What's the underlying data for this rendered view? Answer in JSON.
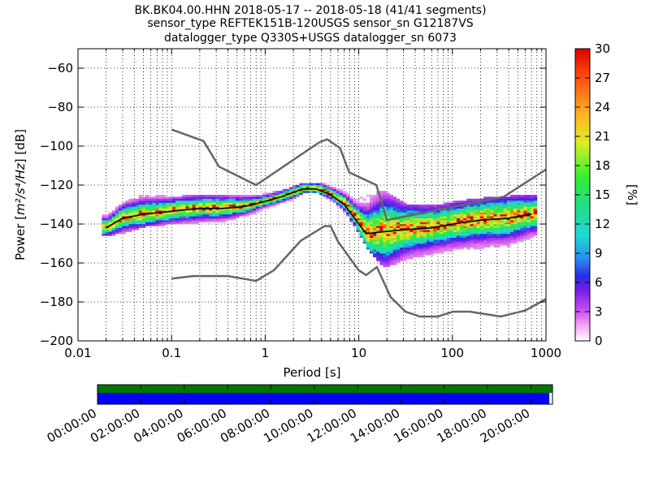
{
  "title_lines": [
    "BK.BK04.00.HHN   2018-05-17 -- 2018-05-18  (41/41 segments)",
    "sensor_type REFTEK151B-120USGS sensor_sn G12187VS",
    "datalogger_type Q330S+USGS datalogger_sn 6073"
  ],
  "chart_data": {
    "type": "heatmap",
    "xlabel": "Period [s]",
    "ylabel_prefix": "Power [",
    "ylabel_math": "m²/s⁴/Hz",
    "ylabel_suffix": "] [dB]",
    "x_scale": "log",
    "xlim": [
      0.01,
      1000
    ],
    "ylim": [
      -200,
      -50
    ],
    "x_ticks": [
      {
        "value": 0.01,
        "label": "0.01"
      },
      {
        "value": 0.1,
        "label": "0.1"
      },
      {
        "value": 1,
        "label": "1"
      },
      {
        "value": 10,
        "label": "10"
      },
      {
        "value": 100,
        "label": "100"
      },
      {
        "value": 1000,
        "label": "1000"
      }
    ],
    "y_ticks": [
      -60,
      -80,
      -100,
      -120,
      -140,
      -160,
      -180,
      -200
    ],
    "y_tick_labels": [
      "−60",
      "−80",
      "−100",
      "−120",
      "−140",
      "−160",
      "−180",
      "−200"
    ],
    "grid": "dotted, on all x decades",
    "nhnm": {
      "name": "high noise model",
      "x": [
        0.1,
        0.22,
        0.32,
        0.8,
        3.8,
        4.6,
        6.3,
        7.9,
        15.4,
        20,
        354,
        1000
      ],
      "y": [
        -91.5,
        -97.4,
        -110.5,
        -120,
        -98,
        -96.5,
        -101,
        -113.5,
        -120,
        -138,
        -126,
        -112
      ]
    },
    "nlnm": {
      "name": "low noise model",
      "x": [
        0.1,
        0.17,
        0.4,
        0.8,
        1.24,
        2.4,
        4.3,
        5,
        6,
        10,
        12,
        15.6,
        21.9,
        31.6,
        45,
        70,
        101,
        154,
        328,
        600,
        1000
      ],
      "y": [
        -168,
        -166.7,
        -166.7,
        -169.2,
        -163.7,
        -148.6,
        -141.1,
        -141.1,
        -149,
        -163.8,
        -166.2,
        -162.1,
        -177.5,
        -185,
        -187.5,
        -187.5,
        -185,
        -185,
        -187.5,
        -184.4,
        -178.5
      ]
    },
    "mode": {
      "x": [
        0.02,
        0.03,
        0.05,
        0.08,
        0.12,
        0.2,
        0.35,
        0.6,
        0.9,
        1.5,
        2.5,
        3.5,
        5,
        7,
        9,
        12,
        18,
        30,
        60,
        100,
        200,
        400,
        700
      ],
      "y": [
        -142,
        -137,
        -135,
        -134,
        -133,
        -132,
        -132,
        -131,
        -129,
        -126,
        -122,
        -122,
        -125,
        -130,
        -137,
        -145,
        -144,
        -143,
        -142,
        -140,
        -138,
        -137,
        -135
      ]
    },
    "colorbar": {
      "label": "[%]",
      "min": 0,
      "max": 30,
      "ticks": [
        0,
        3,
        6,
        9,
        12,
        15,
        18,
        21,
        24,
        27,
        30
      ]
    },
    "data_spread": {
      "x": [
        0.02,
        0.03,
        0.05,
        0.08,
        0.12,
        0.2,
        0.35,
        0.6,
        0.9,
        1.5,
        2.5,
        3.5,
        5,
        7,
        9,
        12,
        18,
        30,
        60,
        100,
        200,
        400,
        700
      ],
      "low": [
        -146,
        -144,
        -141,
        -140,
        -140,
        -139,
        -138,
        -136,
        -132,
        -129,
        -124,
        -124,
        -128,
        -134,
        -142,
        -152,
        -162,
        -158,
        -155,
        -153,
        -152,
        -151,
        -146
      ],
      "high": [
        -136,
        -130,
        -126,
        -127,
        -127,
        -126,
        -126,
        -127,
        -126,
        -124,
        -120,
        -120,
        -122,
        -125,
        -129,
        -126,
        -124,
        -131,
        -132,
        -130,
        -128,
        -127,
        -126
      ]
    },
    "timeline": {
      "labels": [
        "00:00:00",
        "02:00:00",
        "04:00:00",
        "06:00:00",
        "08:00:00",
        "10:00:00",
        "12:00:00",
        "14:00:00",
        "16:00:00",
        "18:00:00",
        "20:00:00"
      ],
      "total_hours": 21,
      "green_end_fraction": 1.0,
      "blue_end_fraction": 0.993
    }
  }
}
